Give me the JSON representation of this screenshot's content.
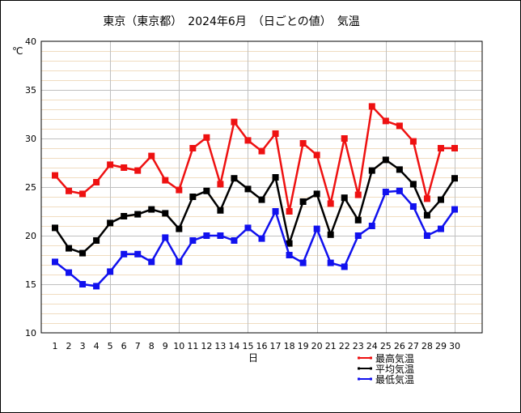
{
  "chart_data": {
    "type": "line",
    "title": "東京（東京都）　2024年6月　（日ごとの値）　気温",
    "xlabel": "日",
    "ylabel": "℃",
    "ylim": [
      10,
      40
    ],
    "yticks": [
      10,
      15,
      20,
      25,
      30,
      35,
      40
    ],
    "grid": true,
    "legend": "bottom-right",
    "x": [
      1,
      2,
      3,
      4,
      5,
      6,
      7,
      8,
      9,
      10,
      11,
      12,
      13,
      14,
      15,
      16,
      17,
      18,
      19,
      20,
      21,
      22,
      23,
      24,
      25,
      26,
      27,
      28,
      29,
      30
    ],
    "series": [
      {
        "name": "最高気温",
        "color": "#ee1111",
        "values": [
          26.2,
          24.6,
          24.3,
          25.5,
          27.3,
          27.0,
          26.7,
          28.2,
          25.7,
          24.7,
          29.0,
          30.1,
          25.3,
          31.7,
          29.8,
          28.7,
          30.5,
          22.5,
          29.5,
          28.3,
          23.3,
          30.0,
          24.2,
          33.3,
          31.8,
          31.3,
          29.7,
          23.8,
          29.0,
          29.0
        ]
      },
      {
        "name": "平均気温",
        "color": "#000000",
        "values": [
          20.8,
          18.7,
          18.2,
          19.5,
          21.3,
          22.0,
          22.2,
          22.7,
          22.3,
          20.7,
          24.0,
          24.6,
          22.6,
          25.9,
          24.8,
          23.7,
          26.0,
          19.2,
          23.5,
          24.3,
          20.1,
          23.9,
          21.6,
          26.7,
          27.8,
          26.8,
          25.3,
          22.1,
          23.7,
          25.9
        ]
      },
      {
        "name": "最低気温",
        "color": "#1111ee",
        "values": [
          17.3,
          16.2,
          15.0,
          14.8,
          16.3,
          18.1,
          18.1,
          17.3,
          19.8,
          17.3,
          19.5,
          20.0,
          20.0,
          19.5,
          20.8,
          19.7,
          22.5,
          18.0,
          17.2,
          20.7,
          17.2,
          16.8,
          20.0,
          21.0,
          24.5,
          24.6,
          23.0,
          20.0,
          20.7,
          22.7
        ]
      }
    ]
  }
}
